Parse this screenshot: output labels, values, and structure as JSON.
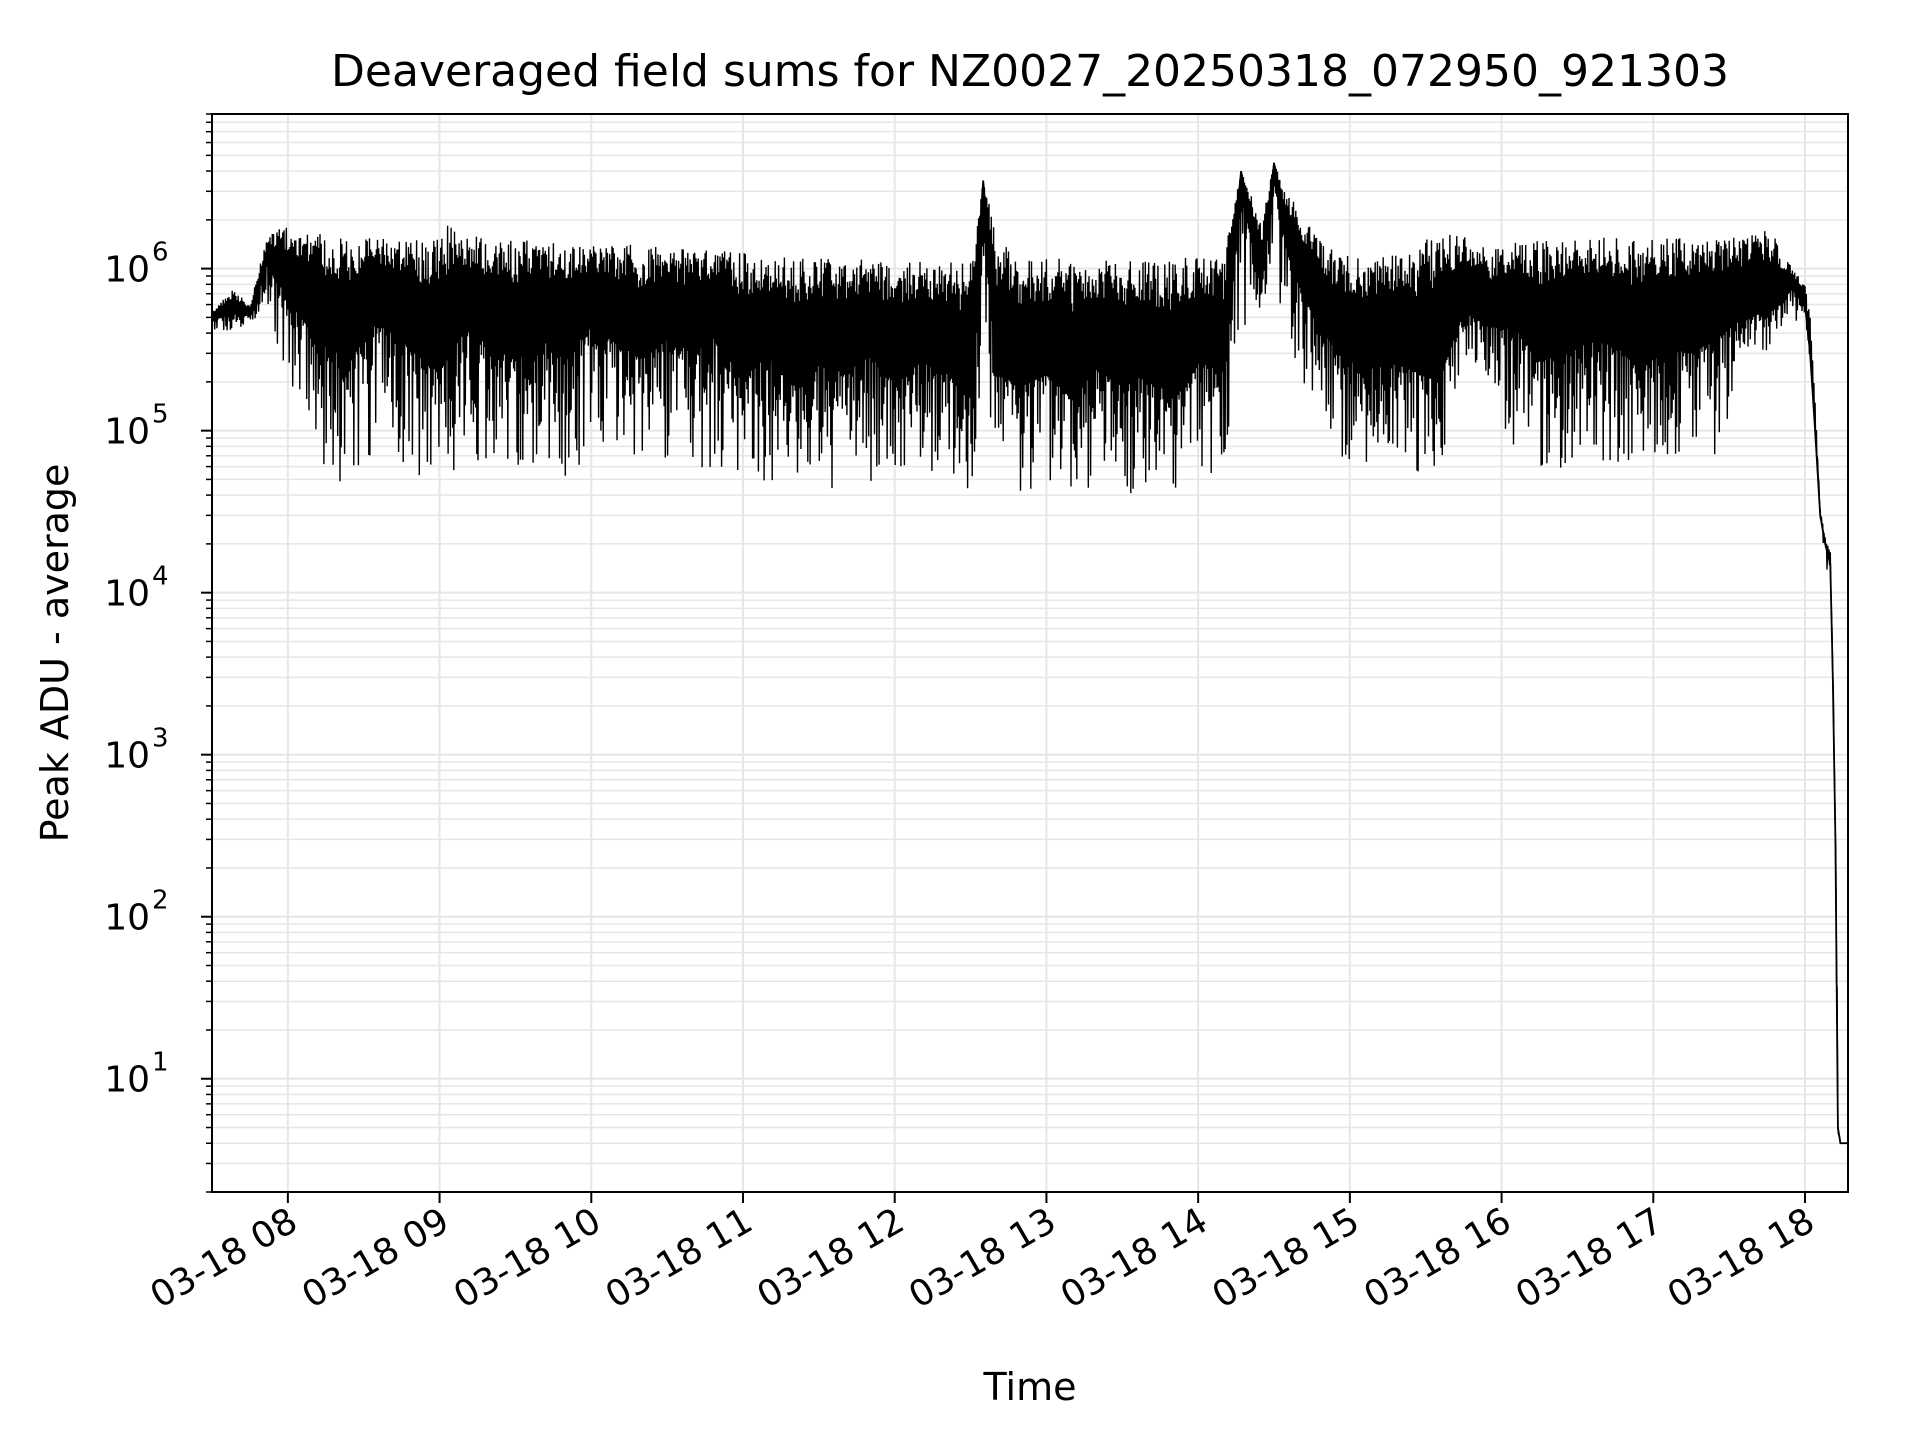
{
  "chart_data": {
    "type": "line",
    "title": "Deaveraged field sums for NZ0027_20250318_072950_921303",
    "xlabel": "Time",
    "ylabel": "Peak ADU - average",
    "y_scale": "log",
    "ylim": [
      2,
      9000000
    ],
    "xlim": [
      "03-18 07:30",
      "03-18 18:17"
    ],
    "grid": true,
    "grid_minor": true,
    "line_color": "#000000",
    "grid_color": "#e6e6e6",
    "x_ticks": [
      {
        "time": "03-18 08:00",
        "label": "03-18 08"
      },
      {
        "time": "03-18 09:00",
        "label": "03-18 09"
      },
      {
        "time": "03-18 10:00",
        "label": "03-18 10"
      },
      {
        "time": "03-18 11:00",
        "label": "03-18 11"
      },
      {
        "time": "03-18 12:00",
        "label": "03-18 12"
      },
      {
        "time": "03-18 13:00",
        "label": "03-18 13"
      },
      {
        "time": "03-18 14:00",
        "label": "03-18 14"
      },
      {
        "time": "03-18 15:00",
        "label": "03-18 15"
      },
      {
        "time": "03-18 16:00",
        "label": "03-18 16"
      },
      {
        "time": "03-18 17:00",
        "label": "03-18 17"
      },
      {
        "time": "03-18 18:00",
        "label": "03-18 18"
      }
    ],
    "y_ticks": [
      {
        "value": 10,
        "base": "10",
        "exp": "1"
      },
      {
        "value": 100,
        "base": "10",
        "exp": "2"
      },
      {
        "value": 1000,
        "base": "10",
        "exp": "3"
      },
      {
        "value": 10000,
        "base": "10",
        "exp": "4"
      },
      {
        "value": 100000,
        "base": "10",
        "exp": "5"
      },
      {
        "value": 1000000,
        "base": "10",
        "exp": "6"
      }
    ],
    "series": [
      {
        "x": [
          "03-18 07:30",
          "03-18 07:38",
          "03-18 07:45",
          "03-18 07:52",
          "03-18 07:58",
          "03-18 08:05",
          "03-18 08:15",
          "03-18 08:25",
          "03-18 08:35",
          "03-18 08:45",
          "03-18 08:55",
          "03-18 09:00",
          "03-18 09:10",
          "03-18 09:20",
          "03-18 09:30",
          "03-18 09:40",
          "03-18 09:50",
          "03-18 10:00",
          "03-18 10:10",
          "03-18 10:20",
          "03-18 10:30",
          "03-18 10:40",
          "03-18 10:50",
          "03-18 11:00",
          "03-18 11:10",
          "03-18 11:20",
          "03-18 11:30",
          "03-18 11:40",
          "03-18 11:50",
          "03-18 12:00",
          "03-18 12:10",
          "03-18 12:20",
          "03-18 12:30",
          "03-18 12:35",
          "03-18 12:40",
          "03-18 12:50",
          "03-18 13:00",
          "03-18 13:10",
          "03-18 13:20",
          "03-18 13:30",
          "03-18 13:40",
          "03-18 13:50",
          "03-18 14:00",
          "03-18 14:10",
          "03-18 14:17",
          "03-18 14:25",
          "03-18 14:30",
          "03-18 14:35",
          "03-18 14:45",
          "03-18 14:55",
          "03-18 15:05",
          "03-18 15:15",
          "03-18 15:25",
          "03-18 15:35",
          "03-18 15:45",
          "03-18 15:55",
          "03-18 16:05",
          "03-18 16:15",
          "03-18 16:25",
          "03-18 16:35",
          "03-18 16:45",
          "03-18 16:55",
          "03-18 17:05",
          "03-18 17:15",
          "03-18 17:25",
          "03-18 17:35",
          "03-18 17:45",
          "03-18 17:55",
          "03-18 18:00",
          "03-18 18:02",
          "03-18 18:04",
          "03-18 18:06",
          "03-18 18:08",
          "03-18 18:10",
          "03-18 18:11",
          "03-18 18:12",
          "03-18 18:13",
          "03-18 18:14",
          "03-18 18:15",
          "03-18 18:16",
          "03-18 18:17"
        ],
        "y": [
          500000,
          550000,
          520000,
          1200000,
          900000,
          600000,
          450000,
          400000,
          700000,
          500000,
          350000,
          300000,
          600000,
          450000,
          350000,
          500000,
          400000,
          600000,
          450000,
          350000,
          500000,
          400000,
          550000,
          300000,
          400000,
          250000,
          350000,
          300000,
          400000,
          250000,
          350000,
          300000,
          200000,
          3500000,
          300000,
          250000,
          300000,
          200000,
          350000,
          250000,
          300000,
          200000,
          350000,
          300000,
          4000000,
          800000,
          4500000,
          1500000,
          700000,
          400000,
          300000,
          350000,
          300000,
          250000,
          600000,
          500000,
          600000,
          350000,
          400000,
          500000,
          450000,
          300000,
          450000,
          400000,
          500000,
          550000,
          600000,
          800000,
          600000,
          300000,
          100000,
          30000,
          20000,
          15000,
          3000,
          300,
          5,
          4,
          4,
          4,
          4
        ],
        "y_max": [
          550000,
          750000,
          600000,
          1600000,
          1800000,
          1800000,
          1600000,
          1500000,
          1600000,
          1550000,
          1500000,
          2000000,
          1600000,
          1550000,
          1500000,
          1500000,
          1450000,
          1400000,
          1450000,
          1400000,
          1350000,
          1300000,
          1300000,
          1250000,
          1200000,
          1200000,
          1150000,
          1200000,
          1150000,
          1150000,
          1100000,
          1100000,
          1100000,
          3500000,
          1700000,
          1150000,
          1150000,
          1150000,
          1100000,
          1150000,
          1100000,
          1150000,
          1200000,
          1150000,
          4000000,
          2000000,
          4500000,
          3000000,
          1800000,
          1200000,
          1250000,
          1200000,
          1250000,
          1800000,
          1700000,
          1300000,
          1450000,
          1500000,
          1500000,
          1600000,
          1550000,
          1500000,
          1600000,
          1550000,
          1600000,
          1600000,
          1900000,
          1000000,
          800000,
          500000,
          150000,
          33000,
          22000,
          18000,
          3000,
          300,
          5,
          4,
          4,
          4,
          4
        ],
        "y_min": [
          400000,
          420000,
          450000,
          600000,
          200000,
          160000,
          48000,
          46000,
          55000,
          50000,
          47000,
          52000,
          55000,
          58000,
          60000,
          55000,
          50000,
          75000,
          72000,
          70000,
          65000,
          60000,
          58000,
          55000,
          48000,
          40000,
          42000,
          45000,
          48000,
          46000,
          52000,
          48000,
          42000,
          42000,
          40000,
          40000,
          38000,
          40000,
          36000,
          40000,
          42000,
          38000,
          50000,
          60000,
          400000,
          550000,
          600000,
          420000,
          100000,
          70000,
          60000,
          58000,
          56000,
          55000,
          300000,
          200000,
          60000,
          58000,
          56000,
          60000,
          62000,
          58000,
          60000,
          62000,
          65000,
          250000,
          300000,
          500000,
          400000,
          200000,
          80000,
          25000,
          15000,
          10000,
          2000,
          200,
          4,
          4,
          4,
          4,
          4
        ]
      }
    ]
  }
}
